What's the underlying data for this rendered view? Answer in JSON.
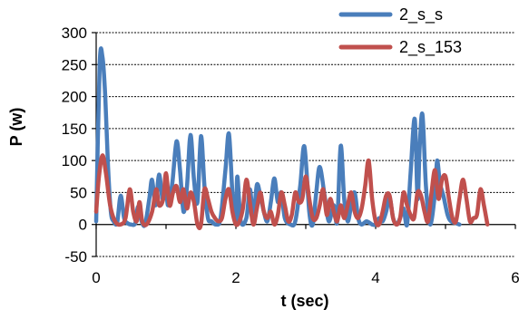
{
  "chart_data": {
    "type": "line",
    "title": "",
    "xlabel": "t (sec)",
    "ylabel": "P (w)",
    "xlim": [
      0,
      6
    ],
    "ylim": [
      -50,
      300
    ],
    "x_ticks": [
      "0",
      "2",
      "4",
      "6"
    ],
    "y_ticks": [
      "-50",
      "0",
      "50",
      "100",
      "150",
      "200",
      "250",
      "300"
    ],
    "grid": "horizontal dashed",
    "legend_position": "top-right",
    "series": [
      {
        "name": "2_s_s",
        "color": "#4a7ebb",
        "points": [
          [
            0.0,
            5
          ],
          [
            0.05,
            250
          ],
          [
            0.09,
            262
          ],
          [
            0.13,
            200
          ],
          [
            0.17,
            90
          ],
          [
            0.21,
            20
          ],
          [
            0.25,
            5
          ],
          [
            0.3,
            3
          ],
          [
            0.35,
            45
          ],
          [
            0.4,
            10
          ],
          [
            0.45,
            2
          ],
          [
            0.5,
            0
          ],
          [
            0.56,
            2
          ],
          [
            0.6,
            28
          ],
          [
            0.65,
            5
          ],
          [
            0.7,
            0
          ],
          [
            0.76,
            40
          ],
          [
            0.8,
            70
          ],
          [
            0.85,
            30
          ],
          [
            0.9,
            78
          ],
          [
            0.95,
            40
          ],
          [
            1.0,
            55
          ],
          [
            1.03,
            30
          ],
          [
            1.09,
            65
          ],
          [
            1.15,
            130
          ],
          [
            1.2,
            85
          ],
          [
            1.25,
            20
          ],
          [
            1.3,
            60
          ],
          [
            1.35,
            140
          ],
          [
            1.4,
            70
          ],
          [
            1.45,
            35
          ],
          [
            1.5,
            138
          ],
          [
            1.55,
            60
          ],
          [
            1.6,
            10
          ],
          [
            1.65,
            5
          ],
          [
            1.72,
            0
          ],
          [
            1.78,
            10
          ],
          [
            1.85,
            85
          ],
          [
            1.9,
            142
          ],
          [
            1.95,
            50
          ],
          [
            2.0,
            2
          ],
          [
            2.02,
            75
          ],
          [
            2.07,
            5
          ],
          [
            2.15,
            10
          ],
          [
            2.2,
            55
          ],
          [
            2.25,
            10
          ],
          [
            2.3,
            62
          ],
          [
            2.35,
            45
          ],
          [
            2.4,
            20
          ],
          [
            2.45,
            5
          ],
          [
            2.5,
            35
          ],
          [
            2.55,
            72
          ],
          [
            2.6,
            35
          ],
          [
            2.65,
            50
          ],
          [
            2.7,
            10
          ],
          [
            2.78,
            0
          ],
          [
            2.85,
            5
          ],
          [
            2.92,
            60
          ],
          [
            2.98,
            122
          ],
          [
            3.05,
            20
          ],
          [
            3.1,
            0
          ],
          [
            3.15,
            50
          ],
          [
            3.2,
            90
          ],
          [
            3.27,
            45
          ],
          [
            3.33,
            5
          ],
          [
            3.4,
            30
          ],
          [
            3.45,
            5
          ],
          [
            3.5,
            123
          ],
          [
            3.55,
            40
          ],
          [
            3.6,
            5
          ],
          [
            3.65,
            30
          ],
          [
            3.7,
            50
          ],
          [
            3.75,
            10
          ],
          [
            3.8,
            0
          ],
          [
            3.87,
            5
          ],
          [
            3.95,
            0
          ],
          [
            4.0,
            0
          ],
          [
            4.05,
            10
          ],
          [
            4.1,
            5
          ],
          [
            4.15,
            20
          ],
          [
            4.2,
            42
          ],
          [
            4.25,
            10
          ],
          [
            4.3,
            0
          ],
          [
            4.35,
            10
          ],
          [
            4.4,
            25
          ],
          [
            4.45,
            0
          ],
          [
            4.5,
            80
          ],
          [
            4.56,
            165
          ],
          [
            4.6,
            40
          ],
          [
            4.63,
            120
          ],
          [
            4.67,
            172
          ],
          [
            4.72,
            60
          ],
          [
            4.78,
            0
          ],
          [
            4.85,
            50
          ],
          [
            4.88,
            100
          ],
          [
            4.92,
            65
          ],
          [
            4.97,
            45
          ],
          [
            5.03,
            15
          ],
          [
            5.08,
            5
          ],
          [
            5.15,
            2
          ],
          [
            5.2,
            0
          ]
        ]
      },
      {
        "name": "2_s_153",
        "color": "#c0504d",
        "points": [
          [
            0.0,
            20
          ],
          [
            0.04,
            75
          ],
          [
            0.09,
            108
          ],
          [
            0.14,
            80
          ],
          [
            0.2,
            30
          ],
          [
            0.27,
            5
          ],
          [
            0.35,
            0
          ],
          [
            0.42,
            10
          ],
          [
            0.48,
            55
          ],
          [
            0.53,
            20
          ],
          [
            0.58,
            5
          ],
          [
            0.62,
            35
          ],
          [
            0.66,
            5
          ],
          [
            0.72,
            0
          ],
          [
            0.8,
            20
          ],
          [
            0.86,
            55
          ],
          [
            0.9,
            30
          ],
          [
            0.96,
            40
          ],
          [
            1.0,
            80
          ],
          [
            1.05,
            30
          ],
          [
            1.1,
            50
          ],
          [
            1.15,
            60
          ],
          [
            1.2,
            35
          ],
          [
            1.25,
            55
          ],
          [
            1.3,
            25
          ],
          [
            1.35,
            50
          ],
          [
            1.4,
            35
          ],
          [
            1.45,
            0
          ],
          [
            1.5,
            0
          ],
          [
            1.55,
            55
          ],
          [
            1.6,
            40
          ],
          [
            1.65,
            20
          ],
          [
            1.7,
            10
          ],
          [
            1.75,
            5
          ],
          [
            1.8,
            10
          ],
          [
            1.85,
            40
          ],
          [
            1.9,
            55
          ],
          [
            1.95,
            20
          ],
          [
            2.0,
            0
          ],
          [
            2.05,
            5
          ],
          [
            2.1,
            25
          ],
          [
            2.15,
            70
          ],
          [
            2.2,
            35
          ],
          [
            2.25,
            0
          ],
          [
            2.3,
            25
          ],
          [
            2.35,
            50
          ],
          [
            2.4,
            20
          ],
          [
            2.45,
            10
          ],
          [
            2.5,
            20
          ],
          [
            2.55,
            0
          ],
          [
            2.6,
            15
          ],
          [
            2.65,
            50
          ],
          [
            2.7,
            30
          ],
          [
            2.75,
            5
          ],
          [
            2.8,
            15
          ],
          [
            2.85,
            50
          ],
          [
            2.9,
            35
          ],
          [
            2.95,
            40
          ],
          [
            3.0,
            75
          ],
          [
            3.05,
            40
          ],
          [
            3.1,
            10
          ],
          [
            3.15,
            10
          ],
          [
            3.2,
            30
          ],
          [
            3.25,
            55
          ],
          [
            3.3,
            15
          ],
          [
            3.35,
            40
          ],
          [
            3.4,
            20
          ],
          [
            3.45,
            5
          ],
          [
            3.5,
            30
          ],
          [
            3.55,
            10
          ],
          [
            3.6,
            30
          ],
          [
            3.65,
            50
          ],
          [
            3.7,
            20
          ],
          [
            3.75,
            10
          ],
          [
            3.8,
            25
          ],
          [
            3.85,
            60
          ],
          [
            3.9,
            100
          ],
          [
            3.95,
            40
          ],
          [
            4.0,
            5
          ],
          [
            4.05,
            0
          ],
          [
            4.1,
            20
          ],
          [
            4.15,
            45
          ],
          [
            4.2,
            45
          ],
          [
            4.25,
            10
          ],
          [
            4.3,
            0
          ],
          [
            4.35,
            10
          ],
          [
            4.4,
            50
          ],
          [
            4.45,
            30
          ],
          [
            4.5,
            15
          ],
          [
            4.55,
            10
          ],
          [
            4.6,
            50
          ],
          [
            4.65,
            45
          ],
          [
            4.7,
            20
          ],
          [
            4.75,
            5
          ],
          [
            4.8,
            50
          ],
          [
            4.85,
            85
          ],
          [
            4.9,
            40
          ],
          [
            4.95,
            70
          ],
          [
            5.0,
            75
          ],
          [
            5.05,
            40
          ],
          [
            5.1,
            10
          ],
          [
            5.15,
            5
          ],
          [
            5.2,
            40
          ],
          [
            5.25,
            70
          ],
          [
            5.3,
            40
          ],
          [
            5.35,
            5
          ],
          [
            5.4,
            10
          ],
          [
            5.45,
            15
          ],
          [
            5.5,
            55
          ],
          [
            5.55,
            30
          ],
          [
            5.6,
            0
          ]
        ]
      }
    ]
  }
}
